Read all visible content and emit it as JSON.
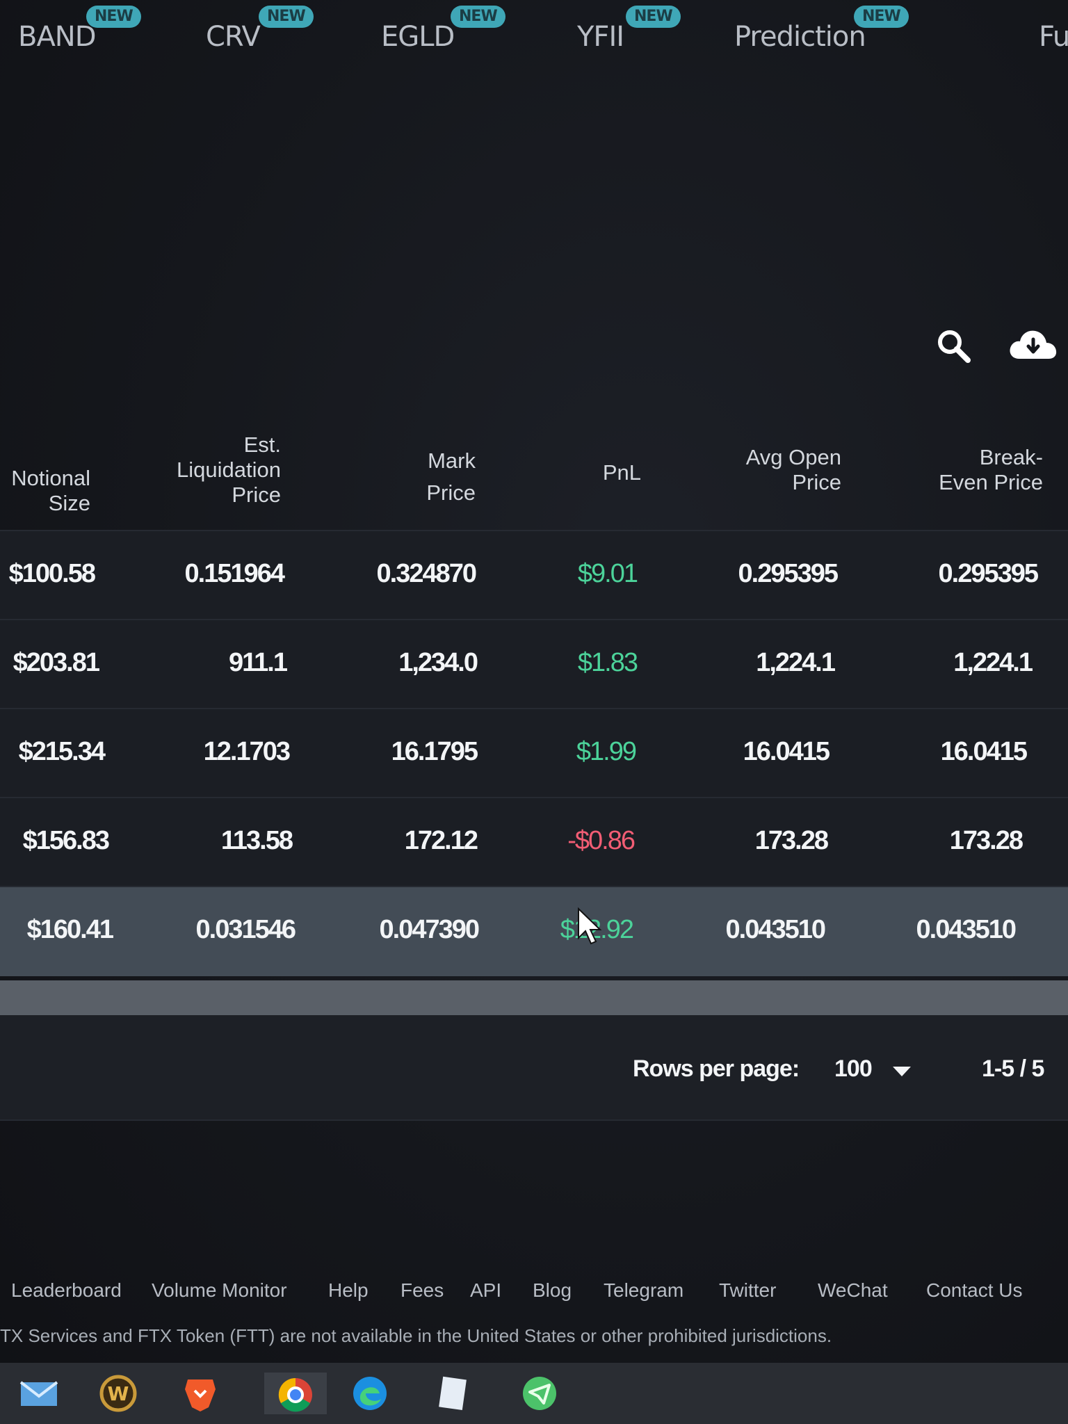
{
  "nav": {
    "items": [
      {
        "label": "BAND",
        "badge": "NEW"
      },
      {
        "label": "CRV",
        "badge": "NEW"
      },
      {
        "label": "EGLD",
        "badge": "NEW"
      },
      {
        "label": "YFII",
        "badge": "NEW"
      },
      {
        "label": "Prediction",
        "badge": "NEW"
      },
      {
        "label": "Fu"
      }
    ]
  },
  "toolbar": {
    "search_icon": "search-icon",
    "download_icon": "cloud-download-icon"
  },
  "table": {
    "headers": {
      "notional": [
        "Notional",
        "Size"
      ],
      "liquidation": [
        "Est.",
        "Liquidation",
        "Price"
      ],
      "mark": [
        "Mark",
        "Price"
      ],
      "pnl": [
        "PnL"
      ],
      "avg_open": [
        "Avg Open",
        "Price"
      ],
      "break_even": [
        "Break-",
        "Even Price"
      ]
    },
    "rows": [
      {
        "notional": "$100.58",
        "liquidation": "0.151964",
        "mark": "0.324870",
        "pnl": "$9.01",
        "avg_open": "0.295395",
        "break_even": "0.295395"
      },
      {
        "notional": "$203.81",
        "liquidation": "911.1",
        "mark": "1,234.0",
        "pnl": "$1.83",
        "avg_open": "1,224.1",
        "break_even": "1,224.1"
      },
      {
        "notional": "$215.34",
        "liquidation": "12.1703",
        "mark": "16.1795",
        "pnl": "$1.99",
        "avg_open": "16.0415",
        "break_even": "16.0415"
      },
      {
        "notional": "$156.83",
        "liquidation": "113.58",
        "mark": "172.12",
        "pnl": "-$0.86",
        "avg_open": "173.28",
        "break_even": "173.28"
      },
      {
        "notional": "$160.41",
        "liquidation": "0.031546",
        "mark": "0.047390",
        "pnl": "$12.92",
        "avg_open": "0.043510",
        "break_even": "0.043510"
      }
    ]
  },
  "pagination": {
    "rows_per_page_label": "Rows per page:",
    "rows_per_page_value": "100",
    "range": "1-5 / 5"
  },
  "footer": {
    "links": [
      "Leaderboard",
      "Volume Monitor",
      "Help",
      "Fees",
      "API",
      "Blog",
      "Telegram",
      "Twitter",
      "WeChat",
      "Contact Us"
    ],
    "disclaimer": "TX Services and FTX Token (FTT) are not available in the United States or other prohibited jurisdictions."
  },
  "colors": {
    "positive": "#4cd39a",
    "negative": "#f25d74",
    "badge": "#3fa7b7"
  },
  "taskbar": {
    "icons": [
      "mail-icon",
      "world-of-warcraft-icon",
      "brave-browser-icon",
      "chrome-icon",
      "edge-icon",
      "notes-icon",
      "telegram-icon"
    ]
  }
}
